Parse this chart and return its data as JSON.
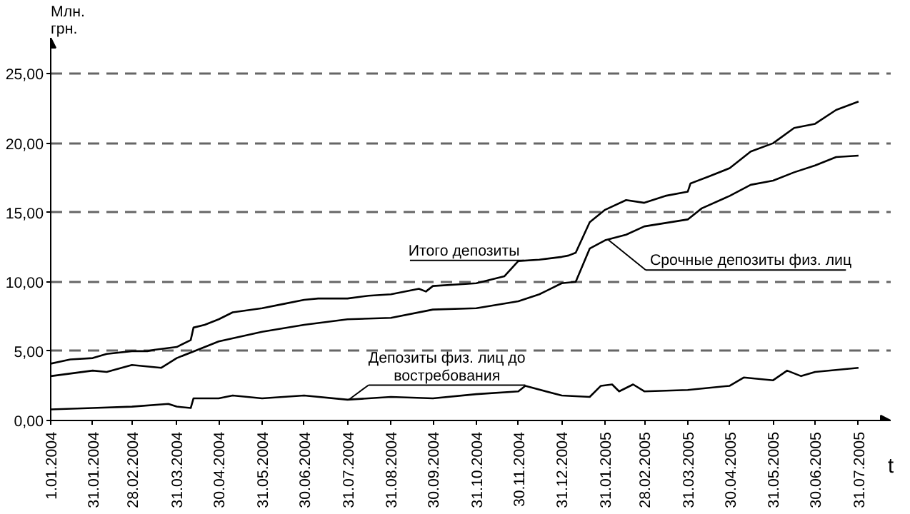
{
  "chart_data": {
    "type": "line",
    "ylabel": "Млн. грн.",
    "xlabel": "t",
    "xlim": [
      "2004-01-01",
      "2005-08-23"
    ],
    "ylim": [
      0,
      27.6
    ],
    "xticks": [
      {
        "value": "2004-01-01",
        "label": "1.01.2004"
      },
      {
        "value": "2004-01-31",
        "label": "31.01.2004"
      },
      {
        "value": "2004-02-28",
        "label": "28.02.2004"
      },
      {
        "value": "2004-03-31",
        "label": "31.03.2004"
      },
      {
        "value": "2004-04-30",
        "label": "30.04.2004"
      },
      {
        "value": "2004-05-31",
        "label": "31.05.2004"
      },
      {
        "value": "2004-06-30",
        "label": "30.06.2004"
      },
      {
        "value": "2004-07-31",
        "label": "31.07.2004"
      },
      {
        "value": "2004-08-31",
        "label": "31.08.2004"
      },
      {
        "value": "2004-09-30",
        "label": "30.09.2004"
      },
      {
        "value": "2004-10-31",
        "label": "31.10.2004"
      },
      {
        "value": "2004-11-30",
        "label": "30.11.2004"
      },
      {
        "value": "2004-12-31",
        "label": "31.12.2004"
      },
      {
        "value": "2005-01-31",
        "label": "31.01.2005"
      },
      {
        "value": "2005-02-28",
        "label": "28.02.2005"
      },
      {
        "value": "2005-03-31",
        "label": "31.03.2005"
      },
      {
        "value": "2005-04-30",
        "label": "30.04.2005"
      },
      {
        "value": "2005-05-31",
        "label": "31.05.2005"
      },
      {
        "value": "2005-06-30",
        "label": "30.06.2005"
      },
      {
        "value": "2005-07-31",
        "label": "31.07.2005"
      }
    ],
    "yticks": [
      {
        "value": 0,
        "label": "0,00"
      },
      {
        "value": 5,
        "label": "5,00"
      },
      {
        "value": 10,
        "label": "10,00"
      },
      {
        "value": 15,
        "label": "15,00"
      },
      {
        "value": 20,
        "label": "20,00"
      },
      {
        "value": 25,
        "label": "25,00"
      }
    ],
    "grid": "y",
    "marker": "none",
    "line_style": "solid",
    "series": [
      {
        "name": "Итого депозиты",
        "color": "#000000",
        "x": [
          "2004-01-01",
          "2004-01-15",
          "2004-01-31",
          "2004-02-10",
          "2004-02-28",
          "2004-03-10",
          "2004-03-15",
          "2004-03-31",
          "2004-04-10",
          "2004-04-12",
          "2004-04-20",
          "2004-04-30",
          "2004-05-10",
          "2004-05-31",
          "2004-06-15",
          "2004-06-30",
          "2004-07-10",
          "2004-07-31",
          "2004-08-15",
          "2004-08-31",
          "2004-09-20",
          "2004-09-25",
          "2004-09-30",
          "2004-10-31",
          "2004-11-20",
          "2004-11-30",
          "2004-12-15",
          "2004-12-31",
          "2005-01-05",
          "2005-01-10",
          "2005-01-20",
          "2005-01-31",
          "2005-02-15",
          "2005-02-28",
          "2005-03-15",
          "2005-03-31",
          "2005-04-02",
          "2005-04-15",
          "2005-04-30",
          "2005-05-15",
          "2005-05-31",
          "2005-06-15",
          "2005-06-30",
          "2005-07-15",
          "2005-07-31"
        ],
        "values": [
          4.1,
          4.4,
          4.5,
          4.8,
          5.0,
          5.0,
          5.1,
          5.3,
          5.8,
          6.7,
          6.9,
          7.3,
          7.8,
          8.1,
          8.4,
          8.7,
          8.8,
          8.8,
          9.0,
          9.1,
          9.5,
          9.3,
          9.7,
          9.9,
          10.4,
          11.5,
          11.6,
          11.8,
          11.9,
          12.1,
          14.3,
          15.2,
          15.9,
          15.7,
          16.2,
          16.5,
          17.1,
          17.6,
          18.2,
          19.4,
          20.0,
          21.1,
          21.4,
          22.4,
          23.0
        ]
      },
      {
        "name": "Срочные депозиты физ. лиц",
        "color": "#000000",
        "x": [
          "2004-01-01",
          "2004-01-31",
          "2004-02-10",
          "2004-02-28",
          "2004-03-20",
          "2004-03-31",
          "2004-04-15",
          "2004-04-30",
          "2004-05-31",
          "2004-06-30",
          "2004-07-31",
          "2004-08-31",
          "2004-09-30",
          "2004-10-31",
          "2004-11-30",
          "2004-12-15",
          "2004-12-31",
          "2005-01-10",
          "2005-01-20",
          "2005-01-31",
          "2005-02-15",
          "2005-02-28",
          "2005-03-31",
          "2005-04-10",
          "2005-04-30",
          "2005-05-15",
          "2005-05-31",
          "2005-06-15",
          "2005-06-30",
          "2005-07-15",
          "2005-07-31"
        ],
        "values": [
          3.2,
          3.6,
          3.5,
          4.0,
          3.8,
          4.5,
          5.1,
          5.7,
          6.4,
          6.9,
          7.3,
          7.4,
          8.0,
          8.1,
          8.6,
          9.1,
          9.9,
          10.0,
          12.4,
          13.0,
          13.4,
          14.0,
          14.5,
          15.3,
          16.2,
          17.0,
          17.3,
          17.9,
          18.4,
          19.0,
          19.1
        ]
      },
      {
        "name": "Депозиты физ. лиц до востребования",
        "color": "#000000",
        "x": [
          "2004-01-01",
          "2004-01-31",
          "2004-02-28",
          "2004-03-25",
          "2004-03-31",
          "2004-04-10",
          "2004-04-12",
          "2004-04-30",
          "2004-05-10",
          "2004-05-31",
          "2004-06-30",
          "2004-07-31",
          "2004-08-31",
          "2004-09-30",
          "2004-10-31",
          "2004-11-30",
          "2004-12-05",
          "2004-12-31",
          "2005-01-20",
          "2005-01-28",
          "2005-02-05",
          "2005-02-10",
          "2005-02-20",
          "2005-02-28",
          "2005-03-31",
          "2005-04-30",
          "2005-05-10",
          "2005-05-31",
          "2005-06-10",
          "2005-06-20",
          "2005-06-30",
          "2005-07-31"
        ],
        "values": [
          0.8,
          0.9,
          1.0,
          1.2,
          1.0,
          0.9,
          1.6,
          1.6,
          1.8,
          1.6,
          1.8,
          1.5,
          1.7,
          1.6,
          1.9,
          2.1,
          2.5,
          1.8,
          1.7,
          2.5,
          2.6,
          2.1,
          2.6,
          2.1,
          2.2,
          2.5,
          3.1,
          2.9,
          3.6,
          3.2,
          3.5,
          3.8
        ]
      }
    ]
  }
}
